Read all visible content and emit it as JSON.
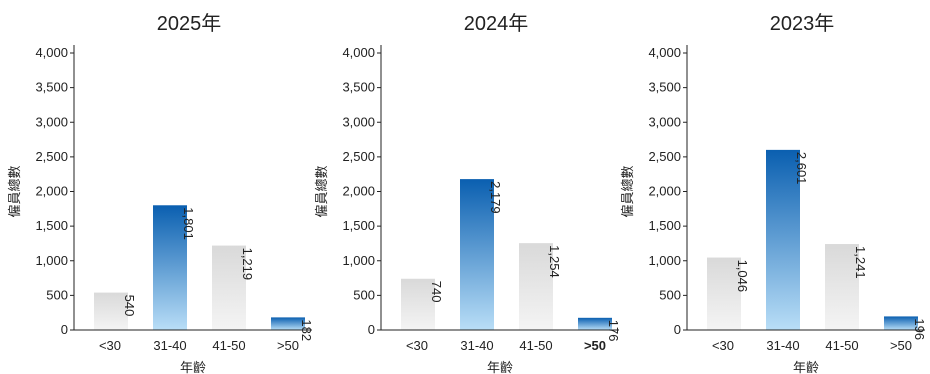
{
  "chart_data": [
    {
      "type": "bar",
      "title": "2025年",
      "xlabel": "年齡",
      "ylabel": "僱員總數",
      "ylim": [
        0,
        4000
      ],
      "yticks": [
        "0",
        "500",
        "1,000",
        "1,500",
        "2,000",
        "2,500",
        "3,000",
        "3,500",
        "4,000"
      ],
      "categories": [
        "<30",
        "31-40",
        "41-50",
        ">50"
      ],
      "values": [
        540,
        1801,
        1219,
        182
      ],
      "value_labels": [
        "540",
        "1,801",
        "1,219",
        "182"
      ],
      "highlight": [
        false,
        true,
        false,
        true
      ],
      "bold_categories": [
        false,
        false,
        false,
        false
      ]
    },
    {
      "type": "bar",
      "title": "2024年",
      "xlabel": "年齡",
      "ylabel": "僱員總數",
      "ylim": [
        0,
        4000
      ],
      "yticks": [
        "0",
        "500",
        "1,000",
        "1,500",
        "2,000",
        "2,500",
        "3,000",
        "3,500",
        "4,000"
      ],
      "categories": [
        "<30",
        "31-40",
        "41-50",
        ">50"
      ],
      "values": [
        740,
        2179,
        1254,
        176
      ],
      "value_labels": [
        "740",
        "2,179",
        "1,254",
        "176"
      ],
      "highlight": [
        false,
        true,
        false,
        true
      ],
      "bold_categories": [
        false,
        false,
        false,
        true
      ]
    },
    {
      "type": "bar",
      "title": "2023年",
      "xlabel": "年齡",
      "ylabel": "僱員總數",
      "ylim": [
        0,
        4000
      ],
      "yticks": [
        "0",
        "500",
        "1,000",
        "1,500",
        "2,000",
        "2,500",
        "3,000",
        "3,500",
        "4,000"
      ],
      "categories": [
        "<30",
        "31-40",
        "41-50",
        ">50"
      ],
      "values": [
        1046,
        2601,
        1241,
        196
      ],
      "value_labels": [
        "1,046",
        "2,601",
        "1,241",
        "196"
      ],
      "highlight": [
        false,
        true,
        false,
        true
      ],
      "bold_categories": [
        false,
        false,
        false,
        false
      ]
    }
  ],
  "colors": {
    "highlight_top": "#0a5fb0",
    "highlight_bottom": "#b9def7",
    "neutral_top": "#d9d9d9",
    "neutral_bottom": "#f4f4f4",
    "text": "#222222",
    "axis": "#222222"
  }
}
